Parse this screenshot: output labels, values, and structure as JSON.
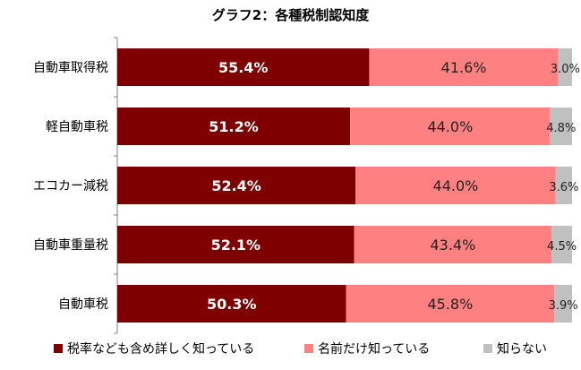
{
  "chart_data": {
    "type": "bar",
    "orientation": "horizontal",
    "stacked": true,
    "title": "グラフ2：各種税制認知度",
    "categories": [
      "自動車取得税",
      "軽自動車税",
      "エコカー減税",
      "自動車重量税",
      "自動車税"
    ],
    "series": [
      {
        "name": "税率なども含め詳しく知っている",
        "color": "#7f0000",
        "values": [
          55.4,
          51.2,
          52.4,
          52.1,
          50.3
        ],
        "labels": [
          "55.4%",
          "51.2%",
          "52.4%",
          "52.1%",
          "50.3%"
        ]
      },
      {
        "name": "名前だけ知っている",
        "color": "#ff8080",
        "values": [
          41.6,
          44.0,
          44.0,
          43.4,
          45.8
        ],
        "labels": [
          "41.6%",
          "44.0%",
          "44.0%",
          "43.4%",
          "45.8%"
        ]
      },
      {
        "name": "知らない",
        "color": "#c0c0c0",
        "values": [
          3.0,
          4.8,
          3.6,
          4.5,
          3.9
        ],
        "labels": [
          "3.0%",
          "4.8%",
          "3.6%",
          "4.5%",
          "3.9%"
        ]
      }
    ],
    "xlim": [
      0,
      100
    ],
    "legend": "bottom"
  }
}
